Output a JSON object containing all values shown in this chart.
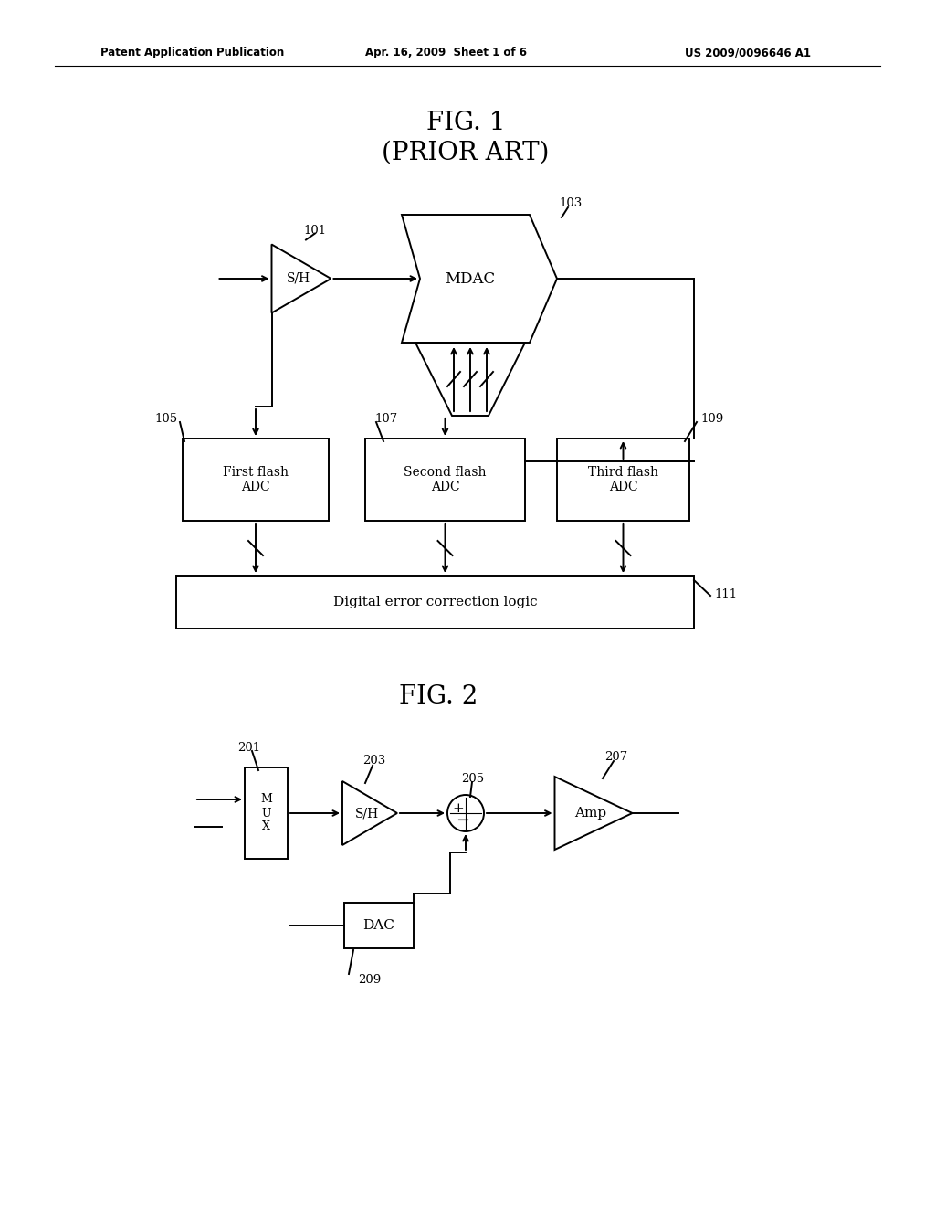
{
  "bg_color": "#ffffff",
  "header_left": "Patent Application Publication",
  "header_center": "Apr. 16, 2009  Sheet 1 of 6",
  "header_right": "US 2009/0096646 A1",
  "fig1_title": "FIG. 1",
  "fig1_subtitle": "(PRIOR ART)",
  "fig2_title": "FIG. 2",
  "label_101": "101",
  "label_103": "103",
  "label_105": "105",
  "label_107": "107",
  "label_109": "109",
  "label_111": "111",
  "label_201": "201",
  "label_203": "203",
  "label_205": "205",
  "label_207": "207",
  "label_209": "209",
  "text_sh": "S/H",
  "text_mdac": "MDAC",
  "text_first_flash": "First flash\nADC",
  "text_second_flash": "Second flash\nADC",
  "text_third_flash": "Third flash\nADC",
  "text_decl": "Digital error correction logic",
  "text_mux": "M\nU\nX",
  "text_sh2": "S/H",
  "text_amp": "Amp",
  "text_dac": "DAC"
}
